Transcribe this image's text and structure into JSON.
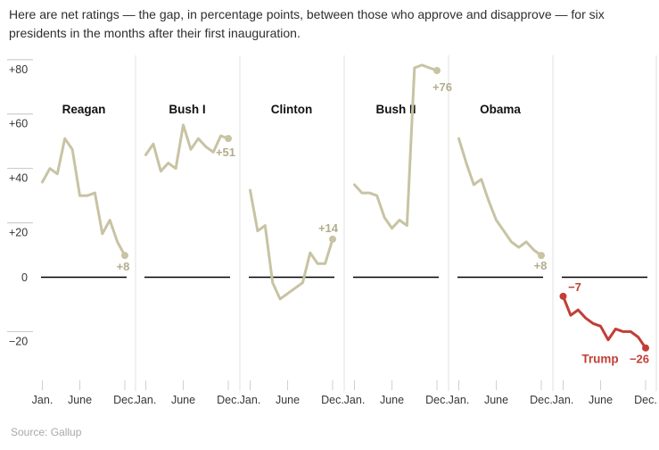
{
  "header": {
    "text": "Here are net ratings — the gap, in percentage points, between those who approve and disapprove — for six presidents in the months after their first inauguration."
  },
  "source": {
    "text": "Source: Gallup"
  },
  "colors": {
    "background": "#ffffff",
    "tan_line": "#c8c3a4",
    "tan_label": "#b3ad8c",
    "red": "#c23e36",
    "text_dark": "#2e2e2e",
    "title_text": "#111111",
    "axis_label": "#363636",
    "y_tick_gray": "#c4c4c4",
    "x_tick_gray": "#cfcfcf",
    "separator": "#e0e0e0",
    "zero_line": "#000000",
    "source_text": "#a8a8a8"
  },
  "chart_data": {
    "type": "line",
    "subject": "Net approval rating (approve minus disapprove), monthly, first year in office",
    "x_axis": {
      "tick_labels": [
        "Jan.",
        "June",
        "Dec."
      ],
      "tick_month_indices": [
        0,
        5,
        11
      ],
      "months_per_panel": 12
    },
    "y_axis": {
      "tick_labels": [
        "+80",
        "+60",
        "+40",
        "+20",
        "0",
        "−20"
      ],
      "tick_values": [
        80,
        60,
        40,
        20,
        0,
        -20
      ],
      "ylim": [
        -30,
        85
      ],
      "grid": "short ticks left of axis labels only, black zero line per panel"
    },
    "legend_position": "none (panel titles)",
    "series": [
      {
        "name": "Reagan",
        "title_placement": "top",
        "color_key": "tan",
        "values": [
          35,
          40,
          38,
          51,
          47,
          30,
          30,
          31,
          16,
          21,
          13,
          8
        ],
        "end_label": "+8"
      },
      {
        "name": "Bush I",
        "title_placement": "top",
        "color_key": "tan",
        "values": [
          45,
          49,
          39,
          42,
          40,
          56,
          47,
          51,
          48,
          46,
          52,
          51
        ],
        "end_label": "+51"
      },
      {
        "name": "Clinton",
        "title_placement": "top",
        "color_key": "tan",
        "values": [
          32,
          17,
          19,
          -2,
          -8,
          -6,
          -4,
          -2,
          9,
          5,
          5,
          14
        ],
        "end_label": "+14"
      },
      {
        "name": "Bush II",
        "title_placement": "top",
        "color_key": "tan",
        "values": [
          34,
          31,
          31,
          30,
          22,
          18,
          21,
          19,
          77,
          78,
          77,
          76
        ],
        "end_label": "+76"
      },
      {
        "name": "Obama",
        "title_placement": "top",
        "color_key": "tan",
        "values": [
          51,
          42,
          34,
          36,
          28,
          21,
          17,
          13,
          11,
          13,
          10,
          8
        ],
        "end_label": "+8"
      },
      {
        "name": "Trump",
        "title_placement": "inline",
        "color_key": "red",
        "values": [
          -7,
          -14,
          -12,
          -15,
          -17,
          -18,
          -23,
          -19,
          -20,
          -20,
          -22,
          -26
        ],
        "start_label": "−7",
        "end_label": "−26",
        "start_dot": true
      }
    ]
  }
}
